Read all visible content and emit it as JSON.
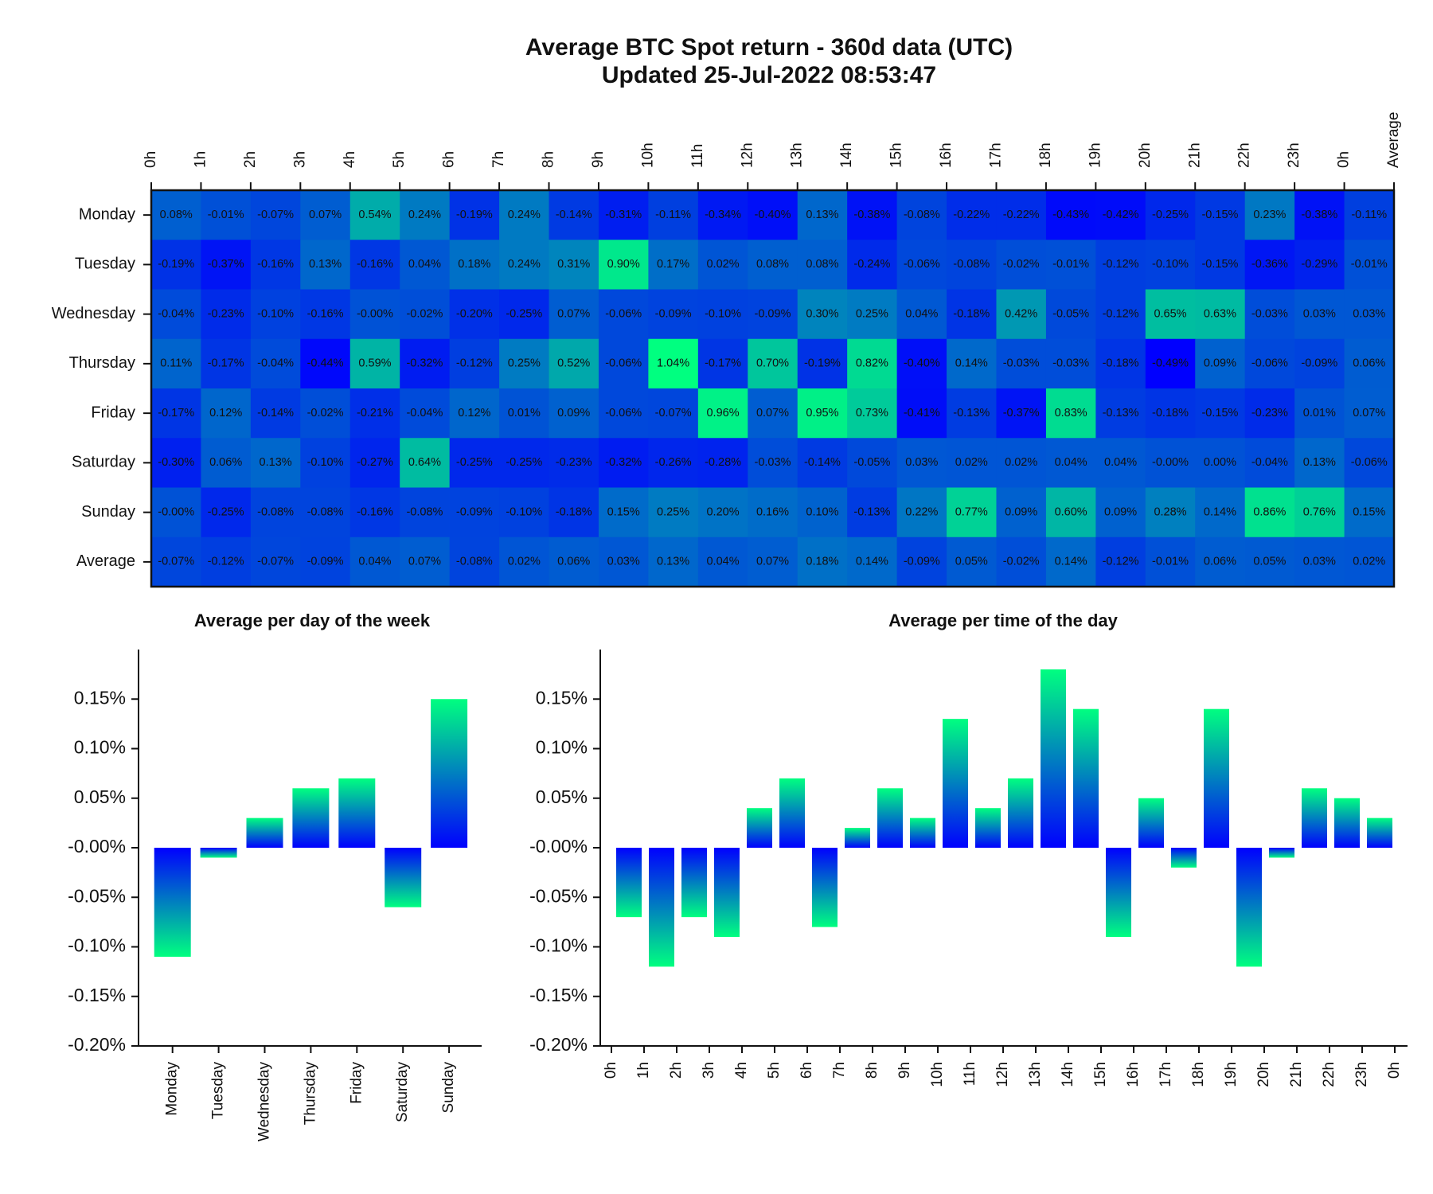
{
  "chart_data": [
    {
      "type": "heatmap",
      "title": "Average BTC Spot return - 360d data (UTC)",
      "subtitle": "Updated 25-Jul-2022 08:53:47",
      "colormap": [
        "#0000ff",
        "#00ff80"
      ],
      "rows": [
        "Monday",
        "Tuesday",
        "Wednesday",
        "Thursday",
        "Friday",
        "Saturday",
        "Sunday",
        "Average"
      ],
      "columns": [
        "0h",
        "1h",
        "2h",
        "3h",
        "4h",
        "5h",
        "6h",
        "7h",
        "8h",
        "9h",
        "10h",
        "11h",
        "12h",
        "13h",
        "14h",
        "15h",
        "16h",
        "17h",
        "18h",
        "19h",
        "20h",
        "21h",
        "22h",
        "23h",
        "0h",
        "Average"
      ],
      "values": [
        [
          0.08,
          -0.01,
          -0.07,
          0.07,
          0.54,
          0.24,
          -0.19,
          0.24,
          -0.14,
          -0.31,
          -0.11,
          -0.34,
          -0.4,
          0.13,
          -0.38,
          -0.08,
          -0.22,
          -0.22,
          -0.43,
          -0.42,
          -0.25,
          -0.15,
          0.23,
          -0.38,
          -0.11
        ],
        [
          -0.19,
          -0.37,
          -0.16,
          0.13,
          -0.16,
          0.04,
          0.18,
          0.24,
          0.31,
          0.9,
          0.17,
          0.02,
          0.08,
          0.08,
          -0.24,
          -0.06,
          -0.08,
          -0.02,
          -0.01,
          -0.12,
          -0.1,
          -0.15,
          -0.36,
          -0.29,
          -0.01
        ],
        [
          -0.04,
          -0.23,
          -0.1,
          -0.16,
          0,
          -0.02,
          -0.2,
          -0.25,
          0.07,
          -0.06,
          -0.09,
          -0.1,
          -0.09,
          0.3,
          0.25,
          0.04,
          -0.18,
          0.42,
          -0.05,
          -0.12,
          0.65,
          0.63,
          -0.03,
          0.03,
          0.03
        ],
        [
          0.11,
          -0.17,
          -0.04,
          -0.44,
          0.59,
          -0.32,
          -0.12,
          0.25,
          0.52,
          -0.06,
          1.04,
          -0.17,
          0.7,
          -0.19,
          0.82,
          -0.4,
          0.14,
          -0.03,
          -0.03,
          -0.18,
          -0.49,
          0.09,
          -0.06,
          -0.09,
          0.06
        ],
        [
          -0.17,
          0.12,
          -0.14,
          -0.02,
          -0.21,
          -0.04,
          0.12,
          0.01,
          0.09,
          -0.06,
          -0.07,
          0.96,
          0.07,
          0.95,
          0.73,
          -0.41,
          -0.13,
          -0.37,
          0.83,
          -0.13,
          -0.18,
          -0.15,
          -0.23,
          0.01,
          0.07
        ],
        [
          -0.3,
          0.06,
          0.13,
          -0.1,
          -0.27,
          0.64,
          -0.25,
          -0.25,
          -0.23,
          -0.32,
          -0.26,
          -0.28,
          -0.03,
          -0.14,
          -0.05,
          0.03,
          0.02,
          0.02,
          0.04,
          0.04,
          0,
          0,
          -0.04,
          0.13,
          -0.06
        ],
        [
          0,
          -0.25,
          -0.08,
          -0.08,
          -0.16,
          -0.08,
          -0.09,
          -0.1,
          -0.18,
          0.15,
          0.25,
          0.2,
          0.16,
          0.1,
          -0.13,
          0.22,
          0.77,
          0.09,
          0.6,
          0.09,
          0.28,
          0.14,
          0.86,
          0.76,
          0.15
        ],
        [
          -0.07,
          -0.12,
          -0.07,
          -0.09,
          0.04,
          0.07,
          -0.08,
          0.02,
          0.06,
          0.03,
          0.13,
          0.04,
          0.07,
          0.18,
          0.14,
          -0.09,
          0.05,
          -0.02,
          0.14,
          -0.12,
          -0.01,
          0.06,
          0.05,
          0.03,
          0.02
        ]
      ],
      "value_labels": [
        [
          "0.08%",
          "-0.01%",
          "-0.07%",
          "0.07%",
          "0.54%",
          "0.24%",
          "-0.19%",
          "0.24%",
          "-0.14%",
          "-0.31%",
          "-0.11%",
          "-0.34%",
          "-0.40%",
          "0.13%",
          "-0.38%",
          "-0.08%",
          "-0.22%",
          "-0.22%",
          "-0.43%",
          "-0.42%",
          "-0.25%",
          "-0.15%",
          "0.23%",
          "-0.38%",
          "-0.11%"
        ],
        [
          "-0.19%",
          "-0.37%",
          "-0.16%",
          "0.13%",
          "-0.16%",
          "0.04%",
          "0.18%",
          "0.24%",
          "0.31%",
          "0.90%",
          "0.17%",
          "0.02%",
          "0.08%",
          "0.08%",
          "-0.24%",
          "-0.06%",
          "-0.08%",
          "-0.02%",
          "-0.01%",
          "-0.12%",
          "-0.10%",
          "-0.15%",
          "-0.36%",
          "-0.29%",
          "-0.01%"
        ],
        [
          "-0.04%",
          "-0.23%",
          "-0.10%",
          "-0.16%",
          "-0.00%",
          "-0.02%",
          "-0.20%",
          "-0.25%",
          "0.07%",
          "-0.06%",
          "-0.09%",
          "-0.10%",
          "-0.09%",
          "0.30%",
          "0.25%",
          "0.04%",
          "-0.18%",
          "0.42%",
          "-0.05%",
          "-0.12%",
          "0.65%",
          "0.63%",
          "-0.03%",
          "0.03%",
          "0.03%"
        ],
        [
          "0.11%",
          "-0.17%",
          "-0.04%",
          "-0.44%",
          "0.59%",
          "-0.32%",
          "-0.12%",
          "0.25%",
          "0.52%",
          "-0.06%",
          "1.04%",
          "-0.17%",
          "0.70%",
          "-0.19%",
          "0.82%",
          "-0.40%",
          "0.14%",
          "-0.03%",
          "-0.03%",
          "-0.18%",
          "-0.49%",
          "0.09%",
          "-0.06%",
          "-0.09%",
          "0.06%"
        ],
        [
          "-0.17%",
          "0.12%",
          "-0.14%",
          "-0.02%",
          "-0.21%",
          "-0.04%",
          "0.12%",
          "0.01%",
          "0.09%",
          "-0.06%",
          "-0.07%",
          "0.96%",
          "0.07%",
          "0.95%",
          "0.73%",
          "-0.41%",
          "-0.13%",
          "-0.37%",
          "0.83%",
          "-0.13%",
          "-0.18%",
          "-0.15%",
          "-0.23%",
          "0.01%",
          "0.07%"
        ],
        [
          "-0.30%",
          "0.06%",
          "0.13%",
          "-0.10%",
          "-0.27%",
          "0.64%",
          "-0.25%",
          "-0.25%",
          "-0.23%",
          "-0.32%",
          "-0.26%",
          "-0.28%",
          "-0.03%",
          "-0.14%",
          "-0.05%",
          "0.03%",
          "0.02%",
          "0.02%",
          "0.04%",
          "0.04%",
          "-0.00%",
          "0.00%",
          "-0.04%",
          "0.13%",
          "-0.06%"
        ],
        [
          "-0.00%",
          "-0.25%",
          "-0.08%",
          "-0.08%",
          "-0.16%",
          "-0.08%",
          "-0.09%",
          "-0.10%",
          "-0.18%",
          "0.15%",
          "0.25%",
          "0.20%",
          "0.16%",
          "0.10%",
          "-0.13%",
          "0.22%",
          "0.77%",
          "0.09%",
          "0.60%",
          "0.09%",
          "0.28%",
          "0.14%",
          "0.86%",
          "0.76%",
          "0.15%"
        ],
        [
          "-0.07%",
          "-0.12%",
          "-0.07%",
          "-0.09%",
          "0.04%",
          "0.07%",
          "-0.08%",
          "0.02%",
          "0.06%",
          "0.03%",
          "0.13%",
          "0.04%",
          "0.07%",
          "0.18%",
          "0.14%",
          "-0.09%",
          "0.05%",
          "-0.02%",
          "0.14%",
          "-0.12%",
          "-0.01%",
          "0.06%",
          "0.05%",
          "0.03%",
          "0.02%"
        ]
      ]
    },
    {
      "type": "bar",
      "title": "Average per day of the week",
      "colormap": [
        "#0000ff",
        "#00ff80"
      ],
      "categories": [
        "Monday",
        "Tuesday",
        "Wednesday",
        "Thursday",
        "Friday",
        "Saturday",
        "Sunday"
      ],
      "values": [
        -0.11,
        -0.01,
        0.03,
        0.06,
        0.07,
        -0.06,
        0.15
      ],
      "ylim": [
        -0.2,
        0.2
      ],
      "yticks": [
        {
          "value": -0.2,
          "label": "-0.20%"
        },
        {
          "value": -0.15,
          "label": "-0.15%"
        },
        {
          "value": -0.1,
          "label": "-0.10%"
        },
        {
          "value": -0.05,
          "label": "-0.05%"
        },
        {
          "value": 0,
          "label": "-0.00%"
        },
        {
          "value": 0.05,
          "label": "0.05%"
        },
        {
          "value": 0.1,
          "label": "0.10%"
        },
        {
          "value": 0.15,
          "label": "0.15%"
        }
      ]
    },
    {
      "type": "bar",
      "title": "Average per time of the day",
      "colormap": [
        "#0000ff",
        "#00ff80"
      ],
      "edge_labels": [
        "0h",
        "1h",
        "2h",
        "3h",
        "4h",
        "5h",
        "6h",
        "7h",
        "8h",
        "9h",
        "10h",
        "11h",
        "12h",
        "13h",
        "14h",
        "15h",
        "16h",
        "17h",
        "18h",
        "19h",
        "20h",
        "21h",
        "22h",
        "23h",
        "0h"
      ],
      "values": [
        -0.07,
        -0.12,
        -0.07,
        -0.09,
        0.04,
        0.07,
        -0.08,
        0.02,
        0.06,
        0.03,
        0.13,
        0.04,
        0.07,
        0.18,
        0.14,
        -0.09,
        0.05,
        -0.02,
        0.14,
        -0.12,
        -0.01,
        0.06,
        0.05,
        0.03
      ],
      "ylim": [
        -0.2,
        0.2
      ],
      "yticks": [
        {
          "value": -0.2,
          "label": "-0.20%"
        },
        {
          "value": -0.15,
          "label": "-0.15%"
        },
        {
          "value": -0.1,
          "label": "-0.10%"
        },
        {
          "value": -0.05,
          "label": "-0.05%"
        },
        {
          "value": 0,
          "label": "-0.00%"
        },
        {
          "value": 0.05,
          "label": "0.05%"
        },
        {
          "value": 0.1,
          "label": "0.10%"
        },
        {
          "value": 0.15,
          "label": "0.15%"
        }
      ]
    }
  ]
}
